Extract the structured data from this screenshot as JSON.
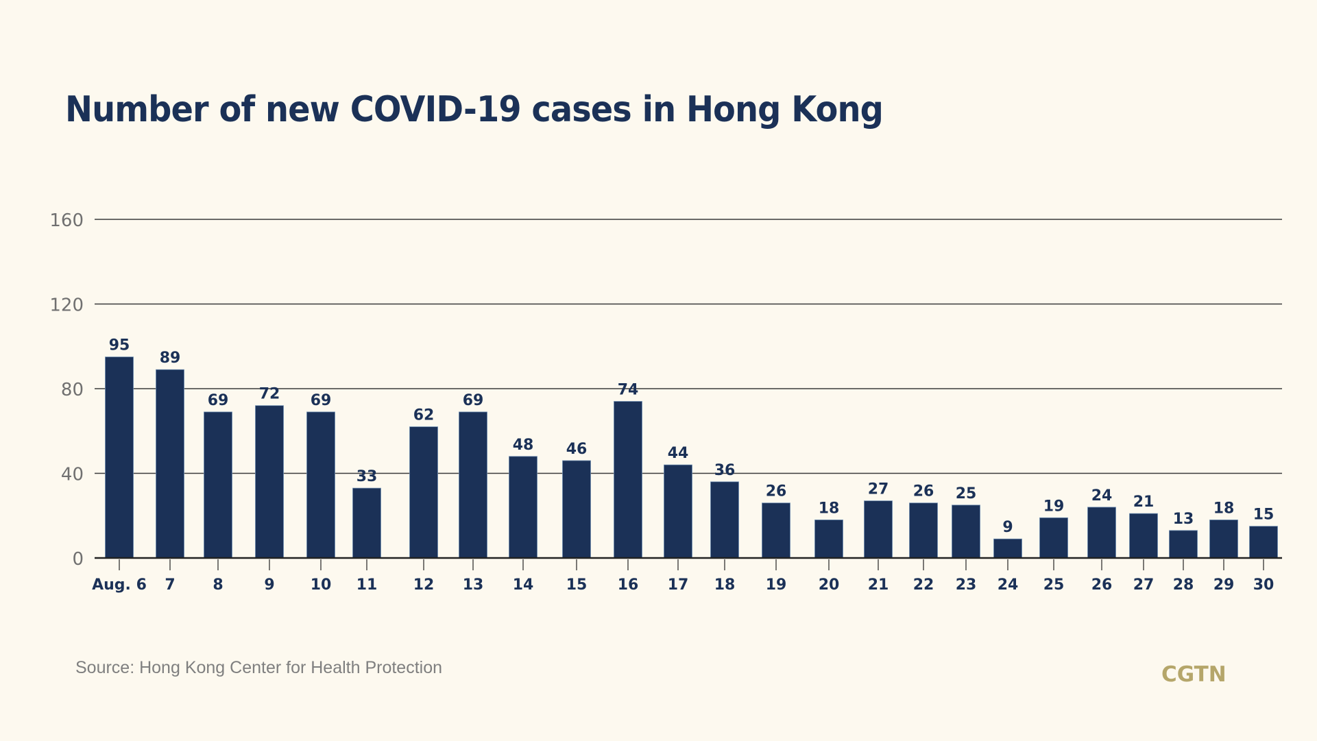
{
  "title": "Number of new COVID-19 cases in Hong Kong",
  "source": "Source: Hong Kong Center for Health Protection",
  "logo": "CGTN",
  "colors": {
    "background": "#fdf9ef",
    "bar": "#1b3157",
    "title": "#1b3157",
    "grid": "#3a3a3a",
    "axis_tick_label": "#707070",
    "source": "#7f7f7f",
    "logo": "#b5a66a"
  },
  "chart_data": {
    "type": "bar",
    "title": "Number of new COVID-19 cases in Hong Kong",
    "xlabel": "",
    "ylabel": "",
    "ylim": [
      0,
      160
    ],
    "yticks": [
      0,
      40,
      80,
      120,
      160
    ],
    "grid": true,
    "legend": "none",
    "categories": [
      "Aug. 6",
      "7",
      "8",
      "9",
      "10",
      "11",
      "12",
      "13",
      "14",
      "15",
      "16",
      "17",
      "18",
      "19",
      "20",
      "21",
      "22",
      "23",
      "24",
      "25",
      "26",
      "27",
      "28",
      "29",
      "30"
    ],
    "values": [
      95,
      89,
      69,
      72,
      69,
      33,
      62,
      69,
      48,
      46,
      74,
      44,
      36,
      26,
      18,
      27,
      26,
      25,
      9,
      19,
      24,
      21,
      13,
      18,
      15
    ],
    "data_labels": [
      "95",
      "89",
      "69",
      "72",
      "69",
      "33",
      "62",
      "69",
      "48",
      "46",
      "74",
      "44",
      "36",
      "26",
      "18",
      "27",
      "26",
      "25",
      "9",
      "19",
      "24",
      "21",
      "13",
      "18",
      "15"
    ]
  }
}
